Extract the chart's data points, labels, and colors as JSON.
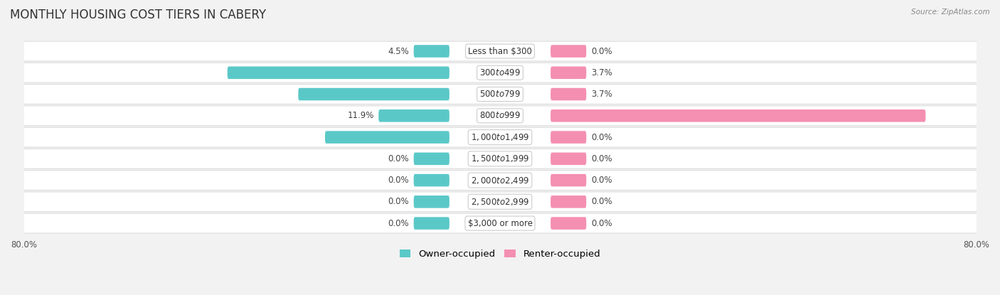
{
  "title": "MONTHLY HOUSING COST TIERS IN CABERY",
  "source": "Source: ZipAtlas.com",
  "categories": [
    "Less than $300",
    "$300 to $499",
    "$500 to $799",
    "$800 to $999",
    "$1,000 to $1,499",
    "$1,500 to $1,999",
    "$2,000 to $2,499",
    "$2,500 to $2,999",
    "$3,000 or more"
  ],
  "owner_values": [
    4.5,
    37.3,
    25.4,
    11.9,
    20.9,
    0.0,
    0.0,
    0.0,
    0.0
  ],
  "renter_values": [
    0.0,
    3.7,
    3.7,
    63.0,
    0.0,
    0.0,
    0.0,
    0.0,
    0.0
  ],
  "owner_color": "#5BC8C8",
  "renter_color": "#F48FB1",
  "background_color": "#F2F2F2",
  "row_bg_color": "#FFFFFF",
  "row_border_color": "#DDDDDD",
  "xlim": 80.0,
  "bar_height": 0.58,
  "min_bar_width": 6.0,
  "title_fontsize": 12,
  "label_fontsize": 8.5,
  "category_fontsize": 8.5,
  "legend_fontsize": 9.5,
  "axis_label_fontsize": 8.5
}
